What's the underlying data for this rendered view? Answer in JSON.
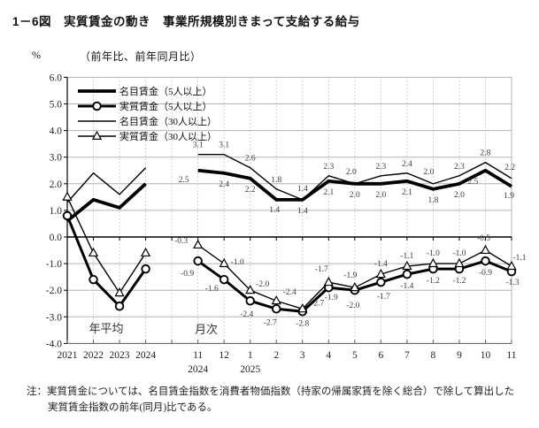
{
  "title": "1－6図　実質賃金の動き　事業所規模別きまって支給する給与",
  "header": {
    "unit": "%",
    "subtitle": "（前年比、前年同月比）"
  },
  "note": {
    "line1": "注：実質賃金については、名目賃金指数を消費者物価指数（持家の帰属家賃を除く総合）で除して算出した",
    "line2": "実質賃金指数の前年(同月)比である。"
  },
  "chart_data": {
    "type": "line",
    "ylim": [
      -4.0,
      6.0
    ],
    "y_ticks": [
      6.0,
      5.0,
      4.0,
      3.0,
      2.0,
      1.0,
      0.0,
      -1.0,
      -2.0,
      -3.0,
      -4.0
    ],
    "grid": true,
    "legend_position": "top-left-inside",
    "sections": {
      "yearly_label": "年平均",
      "monthly_label": "月次"
    },
    "x_yearly": [
      "2021",
      "2022",
      "2023",
      "2024"
    ],
    "x_monthly": [
      "11",
      "12",
      "1",
      "2",
      "3",
      "4",
      "5",
      "6",
      "7",
      "8",
      "9",
      "10",
      "11"
    ],
    "x_monthly_year_marks": [
      {
        "index": 0,
        "label": "2024"
      },
      {
        "index": 2,
        "label": "2025"
      }
    ],
    "series": [
      {
        "name": "名目賃金（5人以上）",
        "style": "thick",
        "marker": "none",
        "color": "#000000",
        "yearly": [
          0.6,
          1.4,
          1.1,
          2.0
        ],
        "monthly": [
          2.5,
          2.4,
          2.2,
          1.4,
          1.4,
          2.1,
          2.0,
          2.0,
          2.1,
          1.8,
          2.0,
          2.5,
          1.9
        ],
        "label_default": [
          0,
          15
        ],
        "label_overrides": {
          "0": [
            -16,
            13
          ],
          "3": [
            -2,
            14
          ],
          "11": [
            -14,
            15
          ],
          "12": [
            -3,
            13
          ]
        }
      },
      {
        "name": "実質賃金（5人以上）",
        "style": "medium",
        "marker": "circle",
        "color": "#000000",
        "yearly": [
          0.8,
          -1.6,
          -2.6,
          -1.2
        ],
        "monthly": [
          -0.9,
          -1.6,
          -2.4,
          -2.7,
          -2.8,
          -1.9,
          -2.0,
          -1.7,
          -1.4,
          -1.2,
          -1.2,
          -0.9,
          -1.3
        ],
        "label_default": [
          0,
          16
        ],
        "label_overrides": {
          "0": [
            -12,
            17
          ],
          "1": [
            -14,
            13
          ],
          "2": [
            -4,
            18
          ],
          "3": [
            -7,
            18
          ],
          "5": [
            3,
            14
          ],
          "6": [
            -2,
            20
          ],
          "7": [
            3,
            19
          ],
          "12": [
            1,
            15
          ]
        }
      },
      {
        "name": "名目賃金（30人以上）",
        "style": "thin",
        "marker": "none",
        "color": "#000000",
        "yearly": [
          1.3,
          2.4,
          1.6,
          2.6
        ],
        "monthly": [
          3.1,
          3.1,
          2.6,
          1.8,
          1.4,
          2.3,
          2.0,
          2.3,
          2.4,
          2.0,
          2.3,
          2.8,
          2.2
        ],
        "label_default": [
          0,
          -8
        ],
        "label_overrides": {
          "4": [
            0,
            -10
          ],
          "6": [
            -4,
            -11
          ],
          "9": [
            -5,
            -11
          ],
          "12": [
            -2,
            -10
          ]
        }
      },
      {
        "name": "実質賃金（30人以上）",
        "style": "thin",
        "marker": "triangle",
        "color": "#000000",
        "yearly": [
          1.5,
          -0.6,
          -2.1,
          -0.6
        ],
        "monthly": [
          -0.3,
          -1.0,
          -2.0,
          -2.4,
          -2.7,
          -1.7,
          -1.9,
          -1.4,
          -1.1,
          -1.0,
          -1.0,
          -0.5,
          -1.1
        ],
        "label_default": [
          0,
          -9
        ],
        "label_overrides": {
          "0": [
            -19,
            -2
          ],
          "1": [
            15,
            1
          ],
          "2": [
            14,
            -4
          ],
          "3": [
            15,
            -7
          ],
          "4": [
            17,
            -4
          ],
          "5": [
            -8,
            -12
          ],
          "6": [
            -5,
            -11
          ],
          "11": [
            -2,
            -11
          ],
          "12": [
            9,
            -7
          ]
        }
      }
    ]
  }
}
